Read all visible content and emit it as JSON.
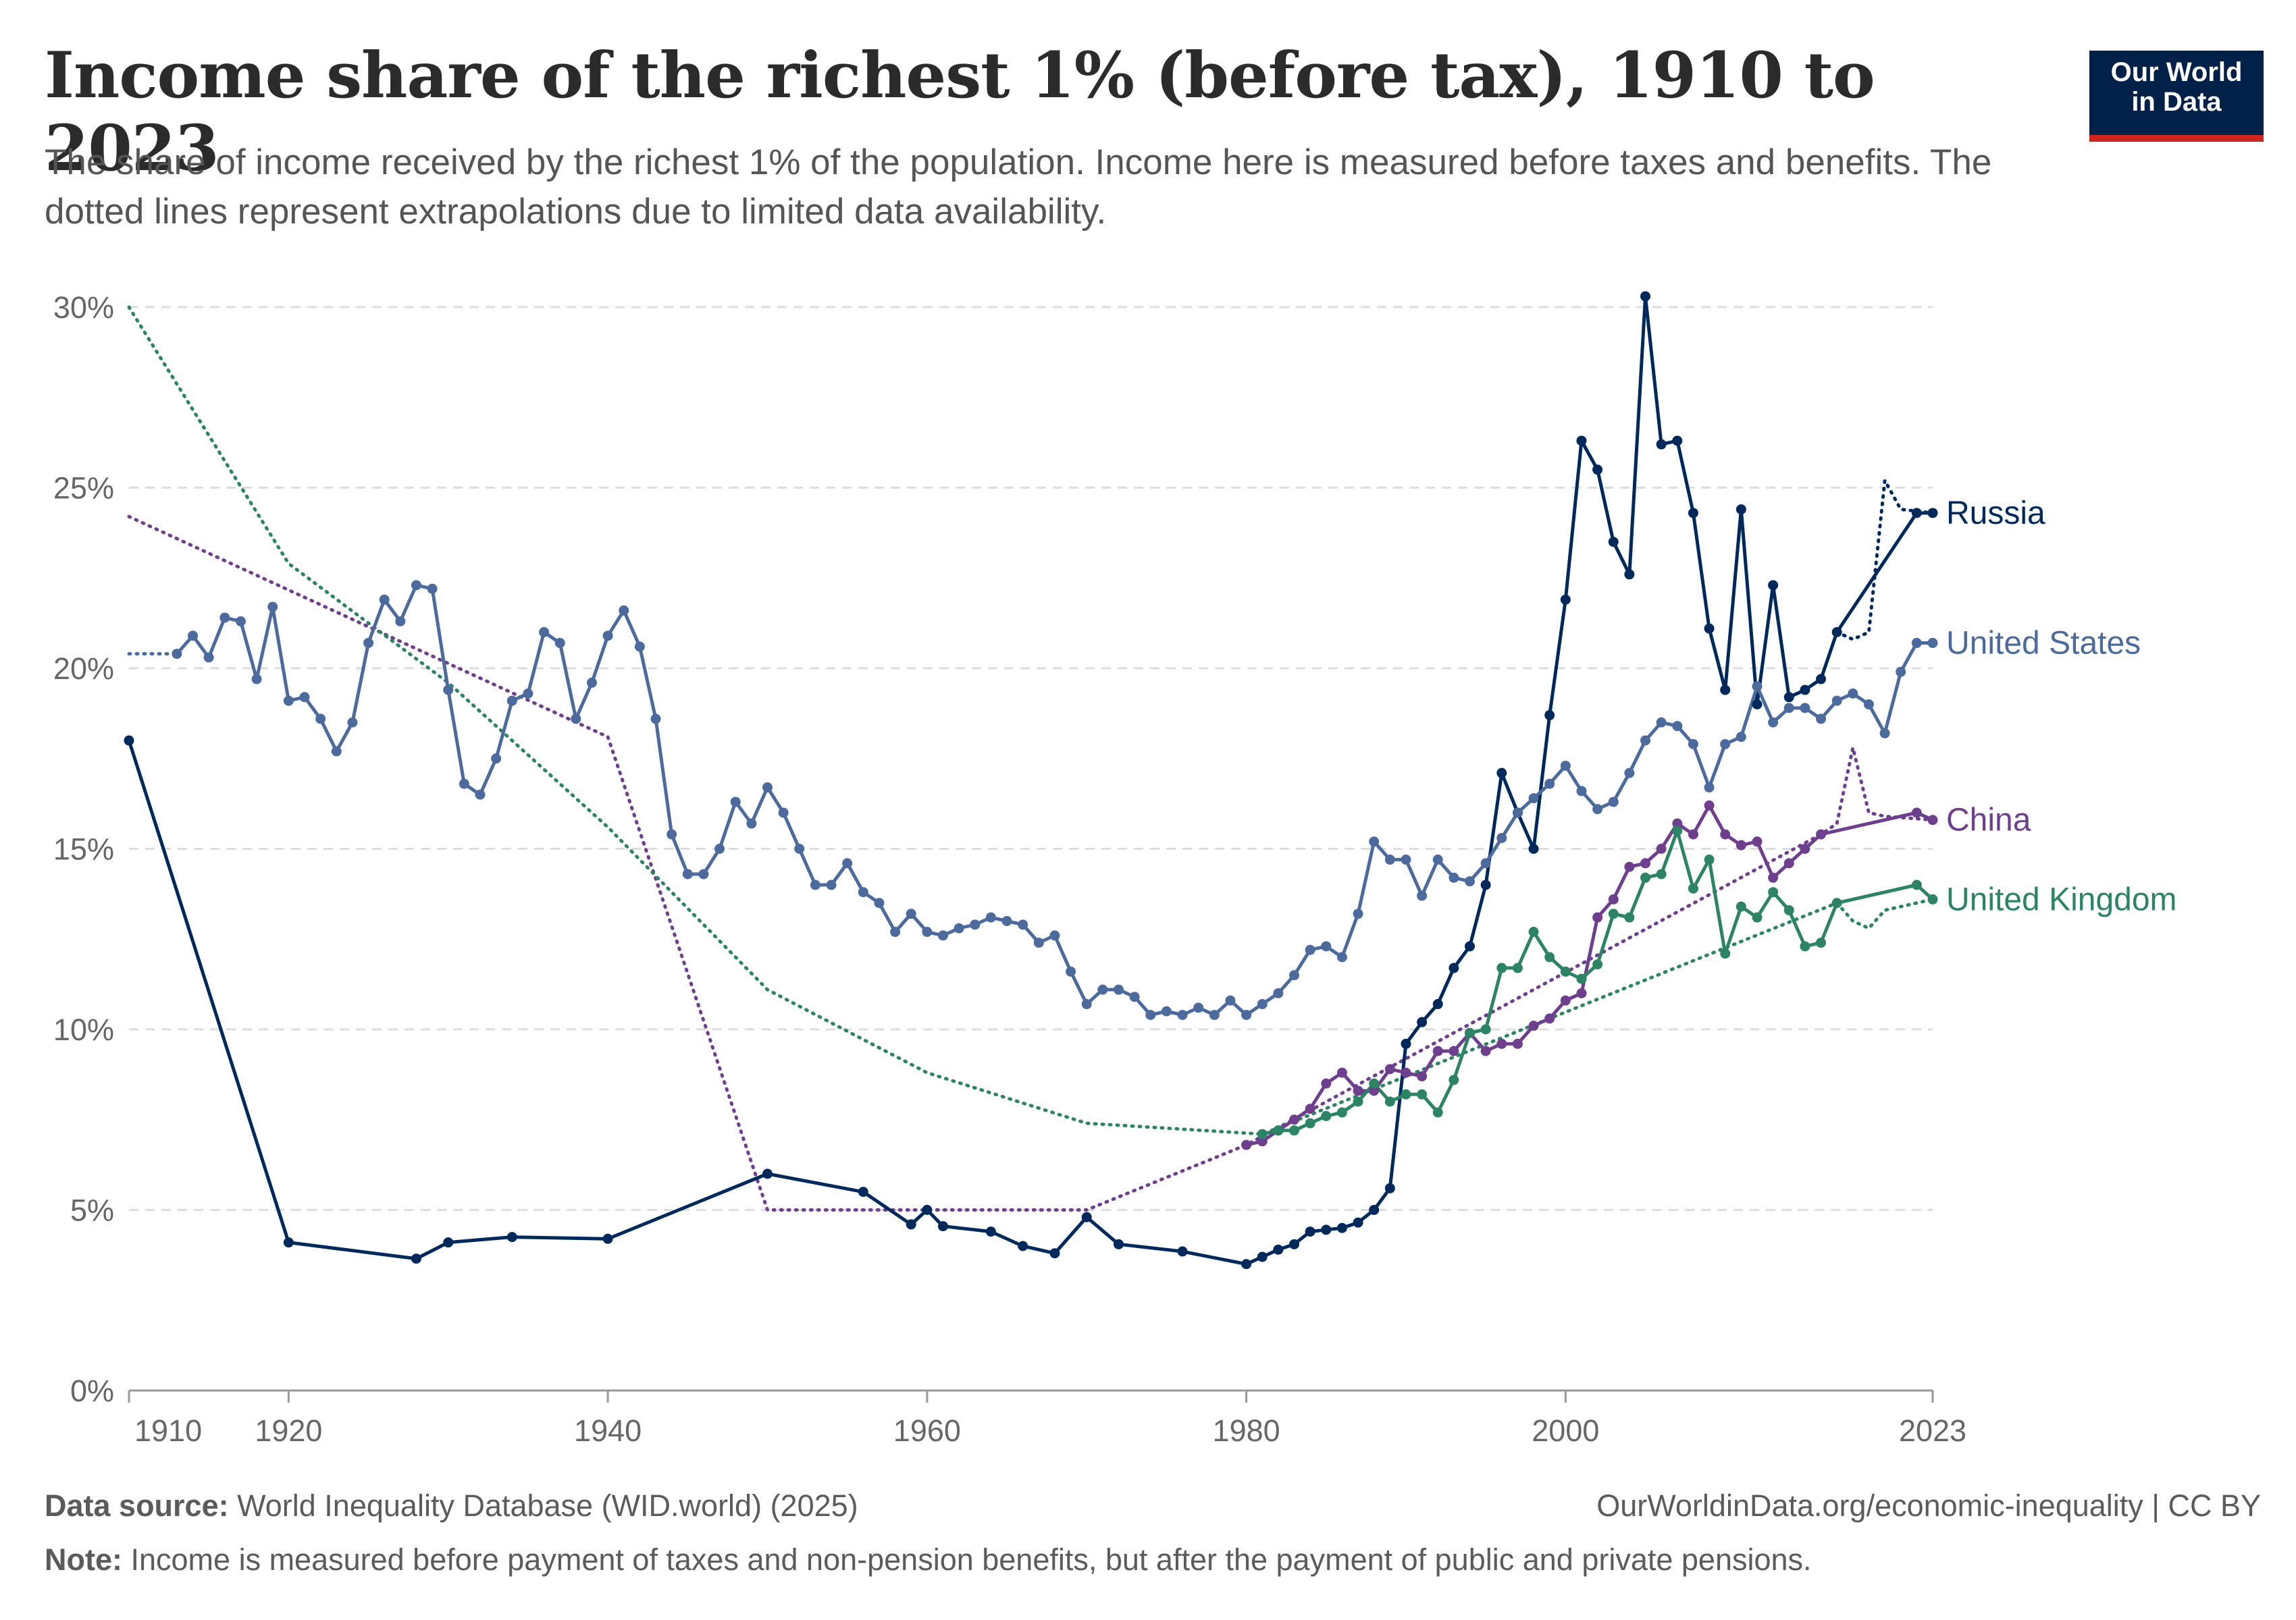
{
  "header": {
    "title": "Income share of the richest 1% (before tax), 1910 to 2023",
    "subtitle": "The share of income received by the richest 1% of the population. Income here is measured before taxes and benefits. The dotted lines represent extrapolations due to limited data availability."
  },
  "logo": {
    "line1": "Our World",
    "line2": "in Data",
    "bg_color": "#002147",
    "accent_color": "#ce261e"
  },
  "footer": {
    "source_label": "Data source:",
    "source_text": "World Inequality Database (WID.world) (2025)",
    "url_text": "OurWorldinData.org/economic-inequality | CC BY",
    "note_label": "Note:",
    "note_text": "Income is measured before payment of taxes and non-pension benefits, but after the payment of public and private pensions."
  },
  "chart_data": {
    "type": "line",
    "title": "Income share of the richest 1% (before tax), 1910 to 2023",
    "xlim": [
      1910,
      2023
    ],
    "ylim": [
      0,
      30
    ],
    "x_ticks": [
      1910,
      1920,
      1940,
      1960,
      1980,
      2000,
      2023
    ],
    "y_ticks": [
      0,
      5,
      10,
      15,
      20,
      25,
      30
    ],
    "y_tick_labels": [
      "0%",
      "5%",
      "10%",
      "15%",
      "20%",
      "25%",
      "30%"
    ],
    "grid": "horizontal dashed",
    "series": [
      {
        "name": "Russia",
        "color": "#00295b",
        "label_y": 24.3,
        "points": [
          [
            1910,
            18.0
          ],
          [
            1920,
            4.1
          ],
          [
            1928,
            3.65
          ],
          [
            1930,
            4.1
          ],
          [
            1934,
            4.25
          ],
          [
            1940,
            4.2
          ],
          [
            1950,
            6.0
          ],
          [
            1956,
            5.5
          ],
          [
            1959,
            4.6
          ],
          [
            1960,
            5.0
          ],
          [
            1961,
            4.55
          ],
          [
            1964,
            4.4
          ],
          [
            1966,
            4.0
          ],
          [
            1968,
            3.8
          ],
          [
            1970,
            4.8
          ],
          [
            1972,
            4.05
          ],
          [
            1976,
            3.85
          ],
          [
            1980,
            3.5
          ],
          [
            1981,
            3.7
          ],
          [
            1982,
            3.9
          ],
          [
            1983,
            4.05
          ],
          [
            1984,
            4.4
          ],
          [
            1985,
            4.45
          ],
          [
            1986,
            4.5
          ],
          [
            1987,
            4.65
          ],
          [
            1988,
            5.0
          ],
          [
            1989,
            5.6
          ],
          [
            1990,
            9.6
          ],
          [
            1991,
            10.2
          ],
          [
            1992,
            10.7
          ],
          [
            1993,
            11.7
          ],
          [
            1994,
            12.3
          ],
          [
            1995,
            14.0
          ],
          [
            1996,
            17.1
          ],
          [
            1997,
            16.0
          ],
          [
            1998,
            15.0
          ],
          [
            1999,
            18.7
          ],
          [
            2000,
            21.9
          ],
          [
            2001,
            26.3
          ],
          [
            2002,
            25.5
          ],
          [
            2003,
            23.5
          ],
          [
            2004,
            22.6
          ],
          [
            2005,
            30.3
          ],
          [
            2006,
            26.2
          ],
          [
            2007,
            26.3
          ],
          [
            2008,
            24.3
          ],
          [
            2009,
            21.1
          ],
          [
            2010,
            19.4
          ],
          [
            2011,
            24.4
          ],
          [
            2012,
            19.0
          ],
          [
            2013,
            22.3
          ],
          [
            2014,
            19.2
          ],
          [
            2015,
            19.4
          ],
          [
            2016,
            19.7
          ],
          [
            2017,
            21.0
          ],
          [
            2022,
            24.3
          ],
          [
            2023,
            24.3
          ]
        ],
        "dotted": [
          [
            2017,
            21.0
          ],
          [
            2018,
            20.8
          ],
          [
            2019,
            21.0
          ],
          [
            2020,
            25.2
          ],
          [
            2021,
            24.4
          ],
          [
            2023,
            24.3
          ]
        ]
      },
      {
        "name": "United States",
        "color": "#4c6a9c",
        "label_y": 20.7,
        "points": [
          [
            1913,
            20.4
          ],
          [
            1914,
            20.9
          ],
          [
            1915,
            20.3
          ],
          [
            1916,
            21.4
          ],
          [
            1917,
            21.3
          ],
          [
            1918,
            19.7
          ],
          [
            1919,
            21.7
          ],
          [
            1920,
            19.1
          ],
          [
            1921,
            19.2
          ],
          [
            1922,
            18.6
          ],
          [
            1923,
            17.7
          ],
          [
            1924,
            18.5
          ],
          [
            1925,
            20.7
          ],
          [
            1926,
            21.9
          ],
          [
            1927,
            21.3
          ],
          [
            1928,
            22.3
          ],
          [
            1929,
            22.2
          ],
          [
            1930,
            19.4
          ],
          [
            1931,
            16.8
          ],
          [
            1932,
            16.5
          ],
          [
            1933,
            17.5
          ],
          [
            1934,
            19.1
          ],
          [
            1935,
            19.3
          ],
          [
            1936,
            21.0
          ],
          [
            1937,
            20.7
          ],
          [
            1938,
            18.6
          ],
          [
            1939,
            19.6
          ],
          [
            1940,
            20.9
          ],
          [
            1941,
            21.6
          ],
          [
            1942,
            20.6
          ],
          [
            1943,
            18.6
          ],
          [
            1944,
            15.4
          ],
          [
            1945,
            14.3
          ],
          [
            1946,
            14.3
          ],
          [
            1947,
            15.0
          ],
          [
            1948,
            16.3
          ],
          [
            1949,
            15.7
          ],
          [
            1950,
            16.7
          ],
          [
            1951,
            16.0
          ],
          [
            1952,
            15.0
          ],
          [
            1953,
            14.0
          ],
          [
            1954,
            14.0
          ],
          [
            1955,
            14.6
          ],
          [
            1956,
            13.8
          ],
          [
            1957,
            13.5
          ],
          [
            1958,
            12.7
          ],
          [
            1959,
            13.2
          ],
          [
            1960,
            12.7
          ],
          [
            1961,
            12.6
          ],
          [
            1962,
            12.8
          ],
          [
            1963,
            12.9
          ],
          [
            1964,
            13.1
          ],
          [
            1965,
            13.0
          ],
          [
            1966,
            12.9
          ],
          [
            1967,
            12.4
          ],
          [
            1968,
            12.6
          ],
          [
            1969,
            11.6
          ],
          [
            1970,
            10.7
          ],
          [
            1971,
            11.1
          ],
          [
            1972,
            11.1
          ],
          [
            1973,
            10.9
          ],
          [
            1974,
            10.4
          ],
          [
            1975,
            10.5
          ],
          [
            1976,
            10.4
          ],
          [
            1977,
            10.6
          ],
          [
            1978,
            10.4
          ],
          [
            1979,
            10.8
          ],
          [
            1980,
            10.4
          ],
          [
            1981,
            10.7
          ],
          [
            1982,
            11.0
          ],
          [
            1983,
            11.5
          ],
          [
            1984,
            12.2
          ],
          [
            1985,
            12.3
          ],
          [
            1986,
            12.0
          ],
          [
            1987,
            13.2
          ],
          [
            1988,
            15.2
          ],
          [
            1989,
            14.7
          ],
          [
            1990,
            14.7
          ],
          [
            1991,
            13.7
          ],
          [
            1992,
            14.7
          ],
          [
            1993,
            14.2
          ],
          [
            1994,
            14.1
          ],
          [
            1995,
            14.6
          ],
          [
            1996,
            15.3
          ],
          [
            1997,
            16.0
          ],
          [
            1998,
            16.4
          ],
          [
            1999,
            16.8
          ],
          [
            2000,
            17.3
          ],
          [
            2001,
            16.6
          ],
          [
            2002,
            16.1
          ],
          [
            2003,
            16.3
          ],
          [
            2004,
            17.1
          ],
          [
            2005,
            18.0
          ],
          [
            2006,
            18.5
          ],
          [
            2007,
            18.4
          ],
          [
            2008,
            17.9
          ],
          [
            2009,
            16.7
          ],
          [
            2010,
            17.9
          ],
          [
            2011,
            18.1
          ],
          [
            2012,
            19.5
          ],
          [
            2013,
            18.5
          ],
          [
            2014,
            18.9
          ],
          [
            2015,
            18.9
          ],
          [
            2016,
            18.6
          ],
          [
            2017,
            19.1
          ],
          [
            2018,
            19.3
          ],
          [
            2019,
            19.0
          ],
          [
            2020,
            18.2
          ],
          [
            2021,
            19.9
          ],
          [
            2022,
            20.7
          ],
          [
            2023,
            20.7
          ]
        ],
        "dotted": [
          [
            1910,
            20.4
          ],
          [
            1913,
            20.4
          ]
        ]
      },
      {
        "name": "China",
        "color": "#6e3f8c",
        "label_y": 15.8,
        "points": [
          [
            1980,
            6.8
          ],
          [
            1981,
            6.9
          ],
          [
            1982,
            7.2
          ],
          [
            1983,
            7.5
          ],
          [
            1984,
            7.8
          ],
          [
            1985,
            8.5
          ],
          [
            1986,
            8.8
          ],
          [
            1987,
            8.3
          ],
          [
            1988,
            8.3
          ],
          [
            1989,
            8.9
          ],
          [
            1990,
            8.8
          ],
          [
            1991,
            8.7
          ],
          [
            1992,
            9.4
          ],
          [
            1993,
            9.4
          ],
          [
            1994,
            9.9
          ],
          [
            1995,
            9.4
          ],
          [
            1996,
            9.6
          ],
          [
            1997,
            9.6
          ],
          [
            1998,
            10.1
          ],
          [
            1999,
            10.3
          ],
          [
            2000,
            10.8
          ],
          [
            2001,
            11.0
          ],
          [
            2002,
            13.1
          ],
          [
            2003,
            13.6
          ],
          [
            2004,
            14.5
          ],
          [
            2005,
            14.6
          ],
          [
            2006,
            15.0
          ],
          [
            2007,
            15.7
          ],
          [
            2008,
            15.4
          ],
          [
            2009,
            16.2
          ],
          [
            2010,
            15.4
          ],
          [
            2011,
            15.1
          ],
          [
            2012,
            15.2
          ],
          [
            2013,
            14.2
          ],
          [
            2014,
            14.6
          ],
          [
            2015,
            15.0
          ],
          [
            2016,
            15.4
          ],
          [
            2022,
            16.0
          ],
          [
            2023,
            15.8
          ]
        ],
        "dotted": [
          [
            1910,
            24.2
          ],
          [
            1940,
            18.1
          ],
          [
            1950,
            5.0
          ],
          [
            1970,
            5.0
          ],
          [
            1980,
            6.8
          ],
          [
            2016,
            15.4
          ],
          [
            2017,
            15.7
          ],
          [
            2018,
            17.8
          ],
          [
            2019,
            16.0
          ],
          [
            2020,
            15.9
          ],
          [
            2023,
            15.8
          ]
        ]
      },
      {
        "name": "United Kingdom",
        "color": "#2c8465",
        "label_y": 13.6,
        "points": [
          [
            1981,
            7.1
          ],
          [
            1982,
            7.2
          ],
          [
            1983,
            7.2
          ],
          [
            1984,
            7.4
          ],
          [
            1985,
            7.6
          ],
          [
            1986,
            7.7
          ],
          [
            1987,
            8.0
          ],
          [
            1988,
            8.5
          ],
          [
            1989,
            8.0
          ],
          [
            1990,
            8.2
          ],
          [
            1991,
            8.2
          ],
          [
            1992,
            7.7
          ],
          [
            1993,
            8.6
          ],
          [
            1994,
            9.9
          ],
          [
            1995,
            10.0
          ],
          [
            1996,
            11.7
          ],
          [
            1997,
            11.7
          ],
          [
            1998,
            12.7
          ],
          [
            1999,
            12.0
          ],
          [
            2000,
            11.6
          ],
          [
            2001,
            11.4
          ],
          [
            2002,
            11.8
          ],
          [
            2003,
            13.2
          ],
          [
            2004,
            13.1
          ],
          [
            2005,
            14.2
          ],
          [
            2006,
            14.3
          ],
          [
            2007,
            15.5
          ],
          [
            2008,
            13.9
          ],
          [
            2009,
            14.7
          ],
          [
            2010,
            12.1
          ],
          [
            2011,
            13.4
          ],
          [
            2012,
            13.1
          ],
          [
            2013,
            13.8
          ],
          [
            2014,
            13.3
          ],
          [
            2015,
            12.3
          ],
          [
            2016,
            12.4
          ],
          [
            2017,
            13.5
          ],
          [
            2022,
            14.0
          ],
          [
            2023,
            13.6
          ]
        ],
        "dotted": [
          [
            1910,
            30.0
          ],
          [
            1920,
            22.9
          ],
          [
            1930,
            19.6
          ],
          [
            1940,
            15.6
          ],
          [
            1950,
            11.1
          ],
          [
            1960,
            8.8
          ],
          [
            1970,
            7.4
          ],
          [
            1981,
            7.1
          ],
          [
            2017,
            13.5
          ],
          [
            2018,
            13.0
          ],
          [
            2019,
            12.8
          ],
          [
            2020,
            13.3
          ],
          [
            2023,
            13.6
          ]
        ]
      }
    ]
  }
}
